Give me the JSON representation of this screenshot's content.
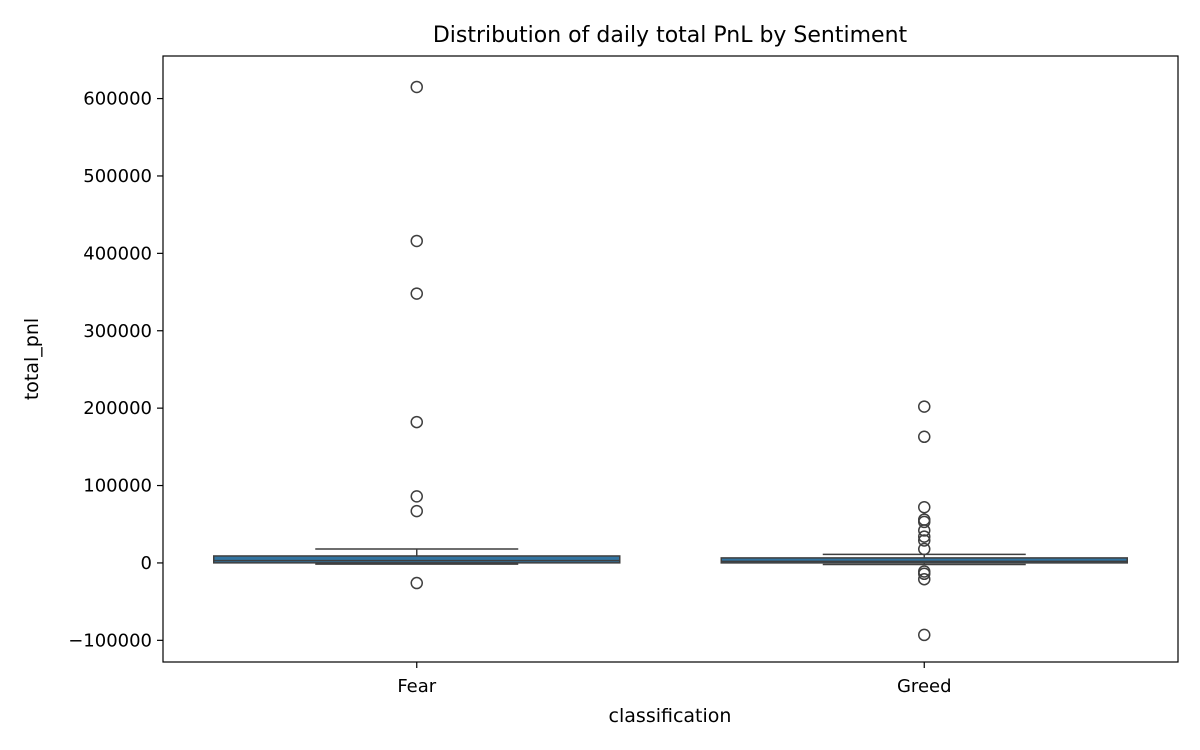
{
  "chart_data": {
    "type": "box",
    "title": "Distribution of daily total PnL by Sentiment",
    "xlabel": "classification",
    "ylabel": "total_pnl",
    "categories": [
      "Fear",
      "Greed"
    ],
    "ylim": [
      -128000,
      655000
    ],
    "yticks": [
      -100000,
      0,
      100000,
      200000,
      300000,
      400000,
      500000,
      600000
    ],
    "ytick_labels": [
      "−100000",
      "0",
      "100000",
      "200000",
      "300000",
      "400000",
      "500000",
      "600000"
    ],
    "grid": false,
    "legend": "none",
    "box_color": "#3274a1",
    "series": [
      {
        "category": "Fear",
        "whisker_low": -1500,
        "q1": 100,
        "median": 3000,
        "q3": 9000,
        "whisker_high": 18000,
        "outliers": [
          615000,
          416000,
          348000,
          182000,
          86000,
          67000,
          -26000
        ]
      },
      {
        "category": "Greed",
        "whisker_low": -2000,
        "q1": 50,
        "median": 2000,
        "q3": 6500,
        "whisker_high": 11000,
        "outliers": [
          202000,
          163000,
          72000,
          56000,
          53000,
          42000,
          34000,
          29000,
          18000,
          -11000,
          -14000,
          -21000,
          -93000
        ]
      }
    ]
  }
}
